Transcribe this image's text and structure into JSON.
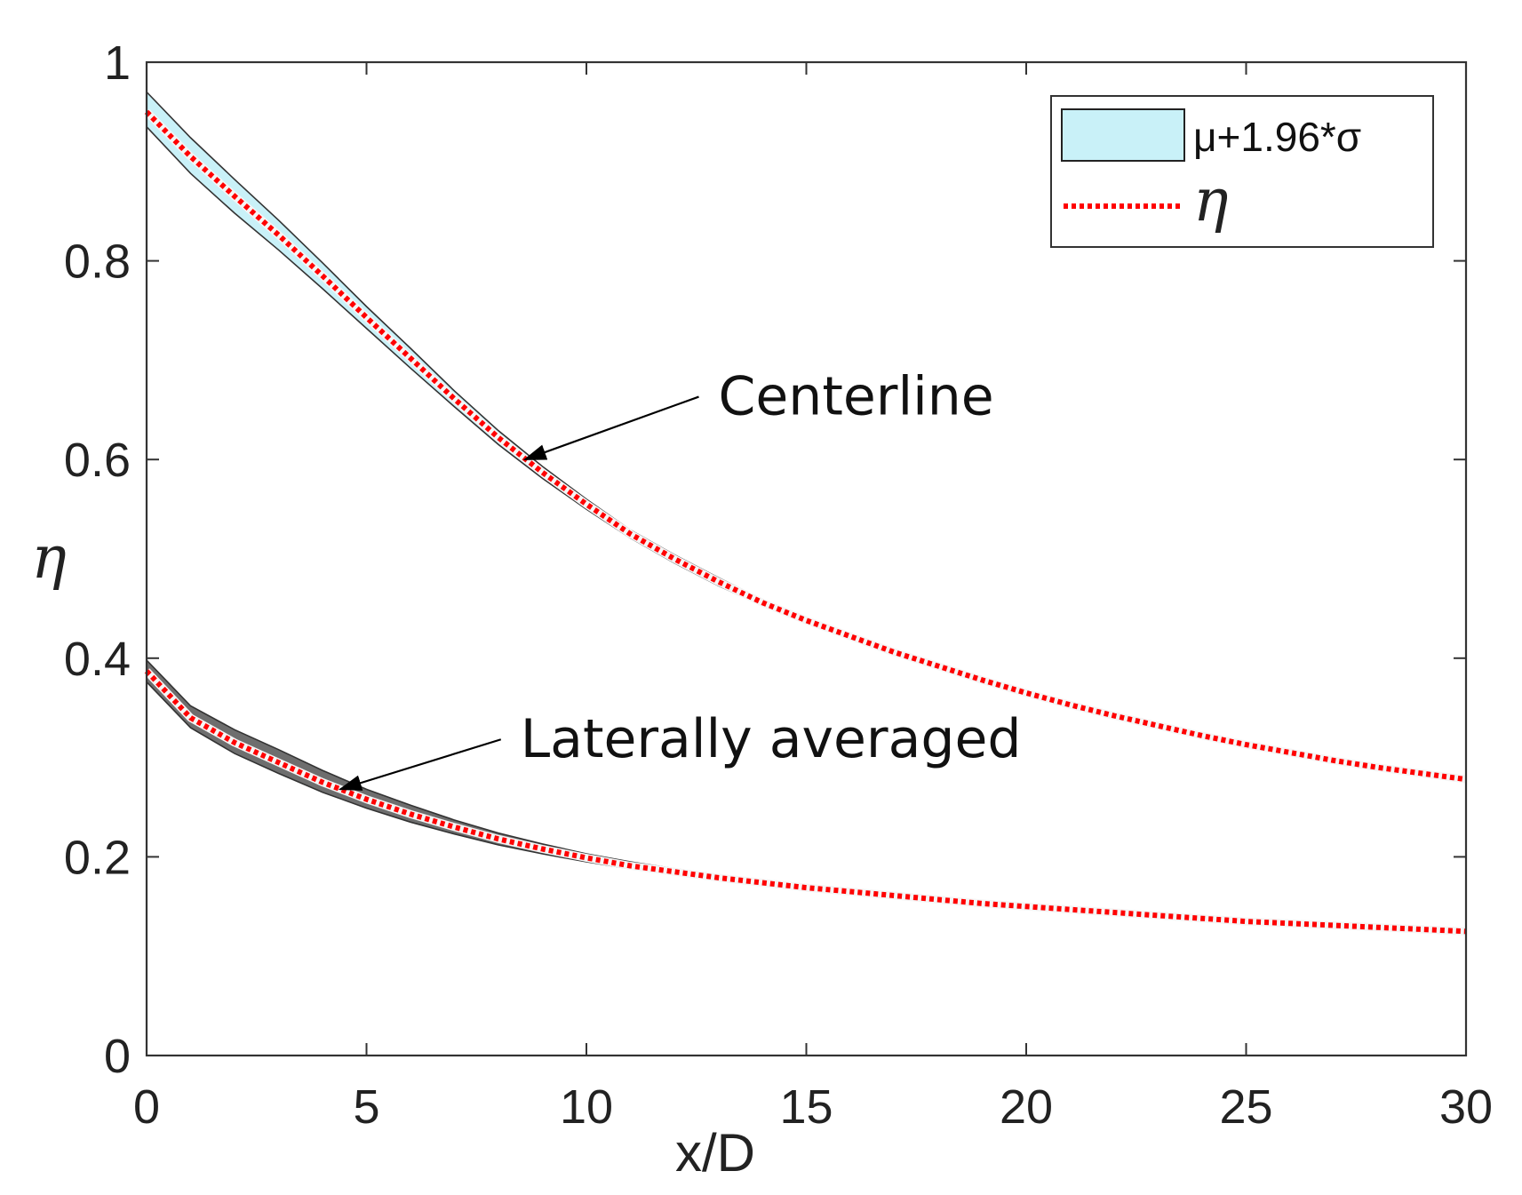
{
  "chart_data": {
    "type": "line",
    "title": "",
    "xlabel": "x/D",
    "ylabel": "η",
    "xlim": [
      0,
      30
    ],
    "ylim": [
      0,
      1
    ],
    "xticks": [
      0,
      5,
      10,
      15,
      20,
      25,
      30
    ],
    "yticks": [
      0,
      0.2,
      0.4,
      0.6,
      0.8,
      1
    ],
    "xtick_labels": [
      "0",
      "5",
      "10",
      "15",
      "20",
      "25",
      "30"
    ],
    "ytick_labels": [
      "0",
      "0.2",
      "0.4",
      "0.6",
      "0.8",
      "1"
    ],
    "grid": false,
    "legend_position": "top-right",
    "legend": [
      {
        "label": "μ+1.96*σ",
        "kind": "band",
        "color": "#c9f1f8"
      },
      {
        "label": "η",
        "kind": "dotted-line",
        "color": "#ff0000"
      }
    ],
    "series": [
      {
        "name": "Centerline",
        "annotation": "Centerline",
        "band_color": "#c9f1f8",
        "line_color": "#ff0000",
        "x": [
          0,
          1,
          2,
          3,
          4,
          5,
          6,
          7,
          8,
          9,
          10,
          11,
          12,
          13,
          14,
          15,
          16,
          17,
          18,
          19,
          20,
          21,
          22,
          23,
          24,
          25,
          26,
          27,
          28,
          29,
          30
        ],
        "mean": [
          0.95,
          0.905,
          0.865,
          0.826,
          0.785,
          0.743,
          0.702,
          0.661,
          0.622,
          0.587,
          0.555,
          0.525,
          0.5,
          0.477,
          0.456,
          0.438,
          0.422,
          0.406,
          0.392,
          0.378,
          0.365,
          0.353,
          0.342,
          0.332,
          0.322,
          0.313,
          0.305,
          0.297,
          0.29,
          0.284,
          0.278
        ],
        "upper": [
          0.97,
          0.924,
          0.882,
          0.841,
          0.798,
          0.754,
          0.712,
          0.669,
          0.629,
          0.593,
          0.56,
          0.529,
          0.504,
          0.481,
          0.459,
          0.441,
          0.424,
          0.408,
          0.394,
          0.38,
          0.367,
          0.355,
          0.344,
          0.334,
          0.324,
          0.315,
          0.307,
          0.299,
          0.292,
          0.286,
          0.28
        ],
        "lower": [
          0.935,
          0.888,
          0.848,
          0.811,
          0.772,
          0.732,
          0.692,
          0.653,
          0.615,
          0.581,
          0.55,
          0.521,
          0.496,
          0.473,
          0.453,
          0.435,
          0.42,
          0.404,
          0.39,
          0.376,
          0.363,
          0.351,
          0.34,
          0.33,
          0.32,
          0.311,
          0.303,
          0.295,
          0.288,
          0.282,
          0.276
        ]
      },
      {
        "name": "Laterally averaged",
        "annotation": "Laterally averaged",
        "band_color": "#6e6e6e",
        "line_color": "#ff0000",
        "x": [
          0,
          1,
          2,
          3,
          4,
          5,
          6,
          7,
          8,
          9,
          10,
          11,
          12,
          13,
          14,
          15,
          16,
          17,
          18,
          19,
          20,
          21,
          22,
          23,
          24,
          25,
          26,
          27,
          28,
          29,
          30
        ],
        "mean": [
          0.387,
          0.34,
          0.315,
          0.295,
          0.275,
          0.258,
          0.243,
          0.23,
          0.218,
          0.208,
          0.199,
          0.191,
          0.185,
          0.179,
          0.174,
          0.169,
          0.165,
          0.161,
          0.157,
          0.153,
          0.15,
          0.147,
          0.144,
          0.141,
          0.138,
          0.135,
          0.133,
          0.131,
          0.129,
          0.127,
          0.125
        ],
        "upper": [
          0.398,
          0.352,
          0.328,
          0.308,
          0.287,
          0.268,
          0.252,
          0.237,
          0.224,
          0.213,
          0.203,
          0.195,
          0.188,
          0.182,
          0.176,
          0.171,
          0.167,
          0.163,
          0.159,
          0.155,
          0.152,
          0.148,
          0.145,
          0.142,
          0.139,
          0.136,
          0.134,
          0.132,
          0.13,
          0.128,
          0.126
        ],
        "lower": [
          0.376,
          0.33,
          0.304,
          0.284,
          0.265,
          0.249,
          0.235,
          0.223,
          0.212,
          0.203,
          0.195,
          0.188,
          0.182,
          0.176,
          0.171,
          0.167,
          0.163,
          0.159,
          0.155,
          0.151,
          0.148,
          0.145,
          0.142,
          0.139,
          0.136,
          0.134,
          0.132,
          0.13,
          0.128,
          0.126,
          0.124
        ]
      }
    ],
    "annotations": [
      {
        "text": "Centerline",
        "text_at": [
          13,
          0.665
        ],
        "arrow_to": [
          8.6,
          0.6
        ]
      },
      {
        "text": "Laterally averaged",
        "text_at": [
          8.5,
          0.32
        ],
        "arrow_to": [
          4.4,
          0.268
        ]
      }
    ]
  }
}
